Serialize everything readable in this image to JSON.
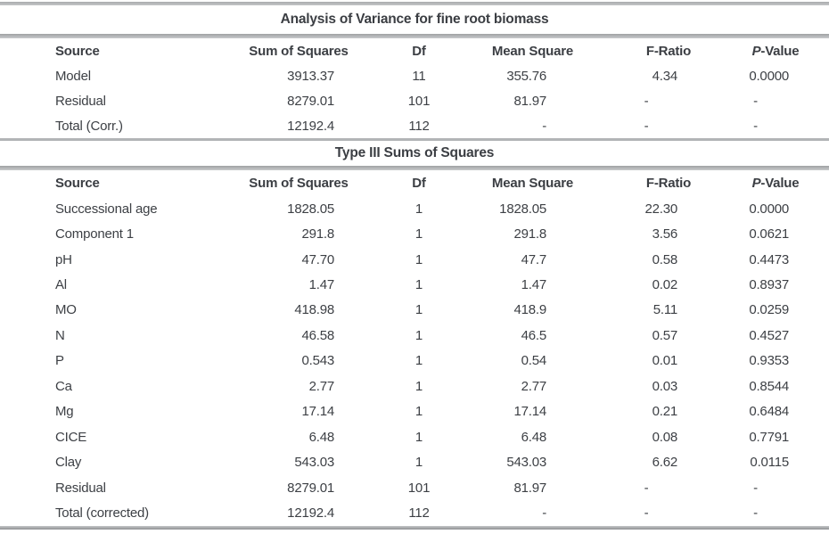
{
  "colors": {
    "background": "#ffffff",
    "text": "#3d4045",
    "rule_gray": "#b2b4b6",
    "rule_dark": "#8f9194"
  },
  "report": {
    "anova_table": {
      "title": "Analysis of Variance for fine root biomass",
      "headers": [
        "Source",
        "Sum of Squares",
        "Df",
        "Mean Square",
        "F-Ratio",
        "P-Value"
      ],
      "rows": [
        [
          "Model",
          "3913.37",
          "11",
          "355.76",
          "4.34",
          "0.0000"
        ],
        [
          "Residual",
          "8279.01",
          "101",
          "81.97",
          "-",
          "-"
        ],
        [
          "Total (Corr.)",
          "12192.4",
          "112",
          "-",
          "-",
          "-"
        ]
      ]
    },
    "type3_table": {
      "title": "Type III Sums of Squares",
      "headers": [
        "Source",
        "Sum of Squares",
        "Df",
        "Mean Square",
        "F-Ratio",
        "P-Value"
      ],
      "rows": [
        [
          "Successional age",
          "1828.05",
          "1",
          "1828.05",
          "22.30",
          "0.0000"
        ],
        [
          "Component 1",
          "291.8",
          "1",
          "291.8",
          "3.56",
          "0.0621"
        ],
        [
          "pH",
          "47.70",
          "1",
          "47.7",
          "0.58",
          "0.4473"
        ],
        [
          "Al",
          "1.47",
          "1",
          "1.47",
          "0.02",
          "0.8937"
        ],
        [
          "MO",
          "418.98",
          "1",
          "418.9",
          "5.11",
          "0.0259"
        ],
        [
          "N",
          "46.58",
          "1",
          "46.5",
          "0.57",
          "0.4527"
        ],
        [
          "P",
          "0.543",
          "1",
          "0.54",
          "0.01",
          "0.9353"
        ],
        [
          "Ca",
          "2.77",
          "1",
          "2.77",
          "0.03",
          "0.8544"
        ],
        [
          "Mg",
          "17.14",
          "1",
          "17.14",
          "0.21",
          "0.6484"
        ],
        [
          "CICE",
          "6.48",
          "1",
          "6.48",
          "0.08",
          "0.7791"
        ],
        [
          "Clay",
          "543.03",
          "1",
          "543.03",
          "6.62",
          "0.0115"
        ],
        [
          "Residual",
          "8279.01",
          "101",
          "81.97",
          "-",
          "-"
        ],
        [
          "Total (corrected)",
          "12192.4",
          "112",
          "-",
          "-",
          "-"
        ]
      ]
    }
  }
}
